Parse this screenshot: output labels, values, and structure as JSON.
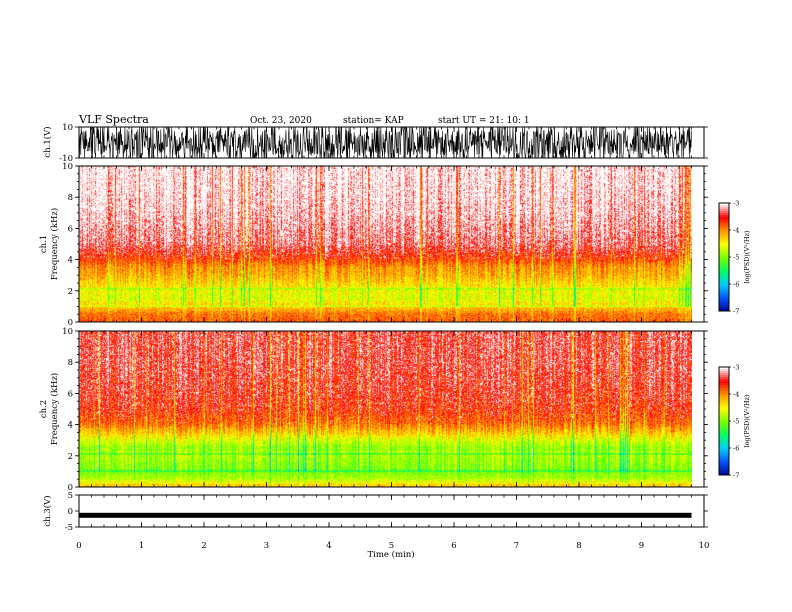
{
  "header": {
    "title": "VLF Spectra",
    "date": "Oct. 23, 2020",
    "station": "station= KAP",
    "start": "start  UT =   21: 10: 1"
  },
  "colors": {
    "spectrum_scale": [
      "#00008c",
      "#0050ff",
      "#00c8ff",
      "#00ff64",
      "#78ff00",
      "#ffff00",
      "#ff9600",
      "#ff0000",
      "#ffffff"
    ]
  },
  "chart_data": [
    {
      "type": "line",
      "id": "ch1-waveform",
      "ylabel": "ch.1(V)",
      "ylim": [
        -10,
        10
      ],
      "y_ticks": [
        -10,
        10
      ],
      "y_tick_labels": [
        "-10",
        "10"
      ],
      "description_level": "dense oscillating waveform spanning most of the range"
    },
    {
      "type": "heatmap",
      "id": "ch1-spectrogram",
      "ylabel": "ch.1\nFrequency (kHz)",
      "ylabel_lines": [
        "ch.1",
        "Frequency (kHz)"
      ],
      "ylim": [
        0,
        10
      ],
      "y_ticks": [
        0,
        2,
        4,
        6,
        8,
        10
      ],
      "y_tick_labels": [
        "0",
        "2",
        "4",
        "6",
        "8",
        "10"
      ],
      "colorbar": {
        "label": "log(PSD)(V²/Hz)",
        "ticks": [
          -3,
          -4,
          -5,
          -6,
          -7
        ],
        "tick_labels": [
          "-3",
          "-4",
          "-5",
          "-6",
          "-7"
        ],
        "range": [
          -7,
          -3
        ]
      },
      "frequency_profile_khz": [
        0,
        0.5,
        1,
        1.5,
        2,
        2.5,
        3,
        3.5,
        4,
        5,
        6,
        7,
        8,
        10
      ],
      "log_psd_profile": [
        -3.8,
        -3.9,
        -4.3,
        -4.6,
        -4.5,
        -4.3,
        -4.1,
        -4.0,
        -3.7,
        -3.3,
        -3.2,
        -3.1,
        -3.05,
        -3.0
      ]
    },
    {
      "type": "heatmap",
      "id": "ch2-spectrogram",
      "ylabel": "ch.2\nFrequency (kHz)",
      "ylabel_lines": [
        "ch.2",
        "Frequency (kHz)"
      ],
      "ylim": [
        0,
        10
      ],
      "y_ticks": [
        0,
        2,
        4,
        6,
        8,
        10
      ],
      "y_tick_labels": [
        "0",
        "2",
        "4",
        "6",
        "8",
        "10"
      ],
      "colorbar": {
        "label": "log(PSD)(V²/Hz)",
        "ticks": [
          -3,
          -4,
          -5,
          -6,
          -7
        ],
        "tick_labels": [
          "-3",
          "-4",
          "-5",
          "-6",
          "-7"
        ],
        "range": [
          -7,
          -3
        ]
      },
      "frequency_profile_khz": [
        0,
        0.5,
        1,
        1.5,
        2,
        2.5,
        3,
        3.5,
        4,
        5,
        6,
        7,
        8,
        10
      ],
      "log_psd_profile": [
        -4.2,
        -4.8,
        -5.0,
        -4.9,
        -4.8,
        -4.9,
        -4.6,
        -4.2,
        -3.9,
        -3.6,
        -3.5,
        -3.45,
        -3.4,
        -3.4
      ]
    },
    {
      "type": "line",
      "id": "ch3-waveform",
      "ylabel": "ch.3(V)",
      "ylim": [
        -5,
        5
      ],
      "y_ticks": [
        -5,
        0,
        5
      ],
      "y_tick_labels": [
        "-5",
        "0",
        "5"
      ],
      "level": -1.5,
      "xlabel": "Time (min)",
      "xlim": [
        0,
        10
      ],
      "x_ticks": [
        0,
        1,
        2,
        3,
        4,
        5,
        6,
        7,
        8,
        9,
        10
      ],
      "x_tick_labels": [
        "0",
        "1",
        "2",
        "3",
        "4",
        "5",
        "6",
        "7",
        "8",
        "9",
        "10"
      ],
      "data_end_min": 9.8
    }
  ]
}
